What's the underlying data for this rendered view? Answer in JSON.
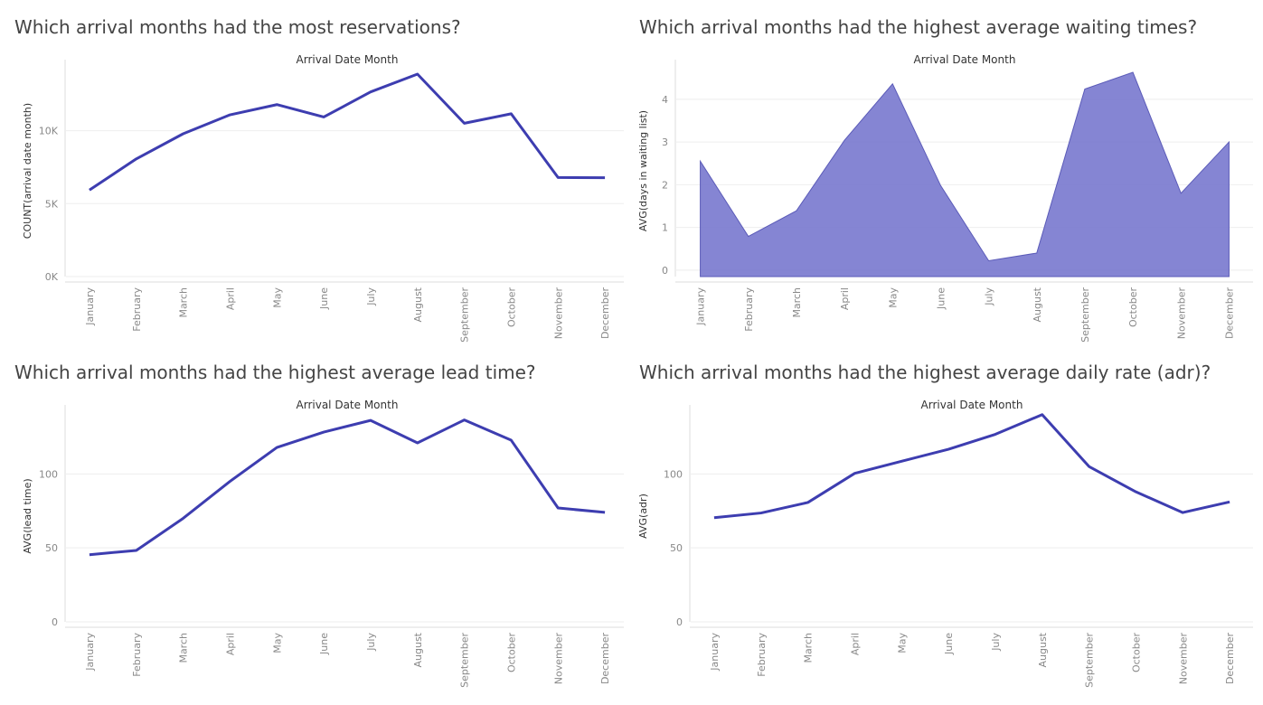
{
  "chart_data": [
    {
      "id": "reservations",
      "type": "line",
      "title": "Which arrival months had the most reservations?",
      "header": "Arrival Date Month",
      "ylabel": "COUNT(arrival date month)",
      "categories": [
        "January",
        "February",
        "March",
        "April",
        "May",
        "June",
        "July",
        "August",
        "September",
        "October",
        "November",
        "December"
      ],
      "values": [
        5930,
        8070,
        9790,
        11090,
        11790,
        10940,
        12660,
        13880,
        10510,
        11160,
        6790,
        6780
      ],
      "ylim": [
        0,
        14500
      ],
      "yticks": [
        0,
        5000,
        10000
      ],
      "ytick_labels": [
        "0K",
        "5K",
        "10K"
      ],
      "grid": true
    },
    {
      "id": "waiting",
      "type": "area",
      "title": "Which arrival months had the highest average waiting times?",
      "header": "Arrival Date Month",
      "ylabel": "AVG(days in waiting list)",
      "categories": [
        "January",
        "February",
        "March",
        "April",
        "May",
        "June",
        "July",
        "August",
        "September",
        "October",
        "November",
        "December"
      ],
      "values": [
        2.55,
        0.79,
        1.39,
        3.04,
        4.36,
        1.98,
        0.22,
        0.4,
        4.24,
        4.63,
        1.8,
        3.0
      ],
      "ylim": [
        -0.15,
        4.8
      ],
      "yticks": [
        0,
        1,
        2,
        3,
        4
      ],
      "ytick_labels": [
        "0",
        "1",
        "2",
        "3",
        "4"
      ],
      "grid": true
    },
    {
      "id": "leadtime",
      "type": "line",
      "title": "Which arrival months had the highest average lead time?",
      "header": "Arrival Date Month",
      "ylabel": "AVG(lead time)",
      "categories": [
        "January",
        "February",
        "March",
        "April",
        "May",
        "June",
        "July",
        "August",
        "September",
        "October",
        "November",
        "December"
      ],
      "values": [
        45.4,
        48.3,
        70.0,
        95.0,
        117.9,
        128.3,
        136.2,
        121.0,
        136.5,
        122.8,
        77.0,
        74.0
      ],
      "ylim": [
        0,
        143
      ],
      "yticks": [
        0,
        50,
        100
      ],
      "ytick_labels": [
        "0",
        "50",
        "100"
      ],
      "grid": true
    },
    {
      "id": "adr",
      "type": "line",
      "title": "Which arrival months had the highest average daily rate (adr)?",
      "header": "Arrival Date Month",
      "ylabel": "AVG(adr)",
      "categories": [
        "January",
        "February",
        "March",
        "April",
        "May",
        "June",
        "July",
        "August",
        "September",
        "October",
        "November",
        "December"
      ],
      "values": [
        70.4,
        73.6,
        80.7,
        100.4,
        108.6,
        116.7,
        126.8,
        140.1,
        105.0,
        87.9,
        73.9,
        81.1
      ],
      "ylim": [
        0,
        143
      ],
      "yticks": [
        0,
        50,
        100
      ],
      "ytick_labels": [
        "0",
        "50",
        "100"
      ],
      "grid": true
    }
  ]
}
